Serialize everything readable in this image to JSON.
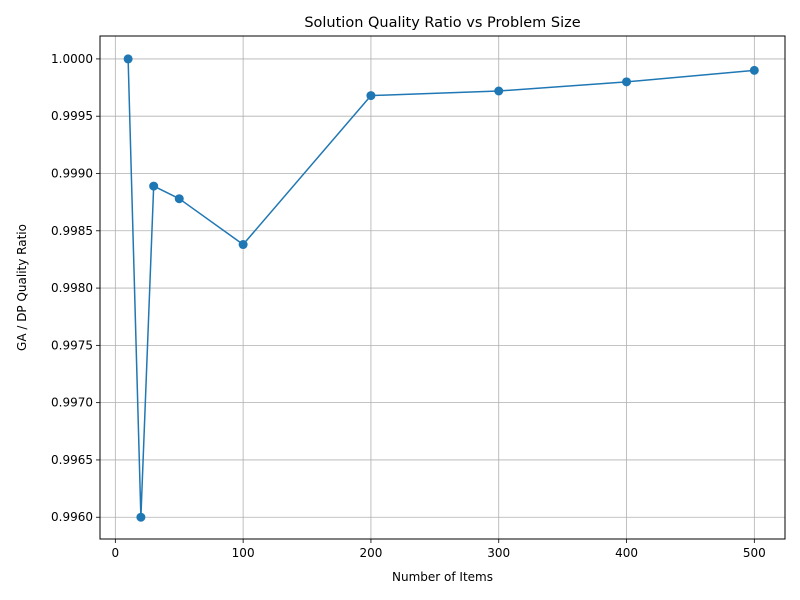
{
  "chart_data": {
    "type": "line",
    "title": "Solution Quality Ratio vs Problem Size",
    "xlabel": "Number of Items",
    "ylabel": "GA / DP Quality Ratio",
    "xlim": [
      -12,
      524
    ],
    "ylim": [
      0.99581,
      1.0002
    ],
    "xticks": [
      0,
      100,
      200,
      300,
      400,
      500
    ],
    "yticks": [
      0.996,
      0.9965,
      0.997,
      0.9975,
      0.998,
      0.9985,
      0.999,
      0.9995,
      1.0
    ],
    "ytick_labels": [
      "0.9960",
      "0.9965",
      "0.9970",
      "0.9975",
      "0.9980",
      "0.9985",
      "0.9990",
      "0.9995",
      "1.0000"
    ],
    "grid": true,
    "series": [
      {
        "color": "#1f77b4",
        "marker": "circle",
        "x": [
          10,
          20,
          30,
          50,
          100,
          200,
          300,
          400,
          500
        ],
        "y": [
          1.0,
          0.996,
          0.99889,
          0.99878,
          0.99838,
          0.99968,
          0.99972,
          0.9998,
          0.9999
        ]
      }
    ]
  }
}
